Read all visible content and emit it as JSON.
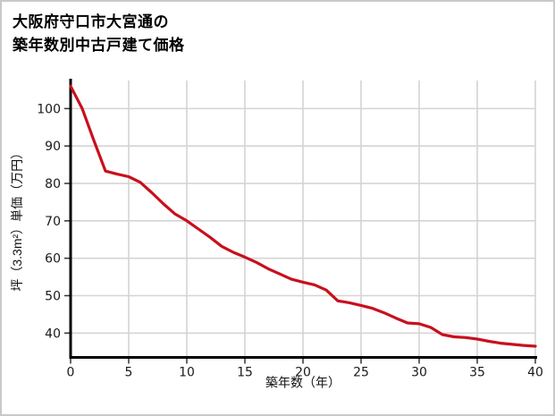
{
  "title": {
    "line1": "大阪府守口市大宮通の",
    "line2": "築年数別中古戸建て価格"
  },
  "chart_data": {
    "type": "line",
    "title": "大阪府守口市大宮通の築年数別中古戸建て価格",
    "xlabel": "築年数（年）",
    "ylabel": "坪（3.3m²）単価（万円）",
    "x": [
      0,
      1,
      2,
      3,
      4,
      5,
      6,
      7,
      8,
      9,
      10,
      11,
      12,
      13,
      14,
      15,
      16,
      17,
      18,
      19,
      20,
      21,
      22,
      23,
      24,
      25,
      26,
      27,
      28,
      29,
      30,
      31,
      32,
      33,
      34,
      35,
      36,
      37,
      38,
      39,
      40
    ],
    "values": [
      106,
      100,
      91.5,
      83.3,
      82.5,
      81.8,
      80.3,
      77.5,
      74.5,
      71.8,
      70,
      67.8,
      65.6,
      63.2,
      61.6,
      60.3,
      58.9,
      57.2,
      55.8,
      54.4,
      53.6,
      52.9,
      51.5,
      48.6,
      48.1,
      47.4,
      46.6,
      45.4,
      44,
      42.7,
      42.5,
      41.5,
      39.6,
      39,
      38.8,
      38.4,
      37.8,
      37.3,
      37,
      36.7,
      36.5
    ],
    "x_ticks": [
      0,
      5,
      10,
      15,
      20,
      25,
      30,
      35,
      40
    ],
    "y_ticks": [
      40,
      50,
      60,
      70,
      80,
      90,
      100
    ],
    "xlim": [
      0,
      40
    ],
    "ylim": [
      33.5,
      107.5
    ],
    "grid": true,
    "legend": "none",
    "colors": {
      "line": "#c8101e",
      "grid": "#d4d4d4",
      "axis": "#000000",
      "tick_text": "#1a1a1a",
      "border": "#c9c9c9"
    }
  }
}
